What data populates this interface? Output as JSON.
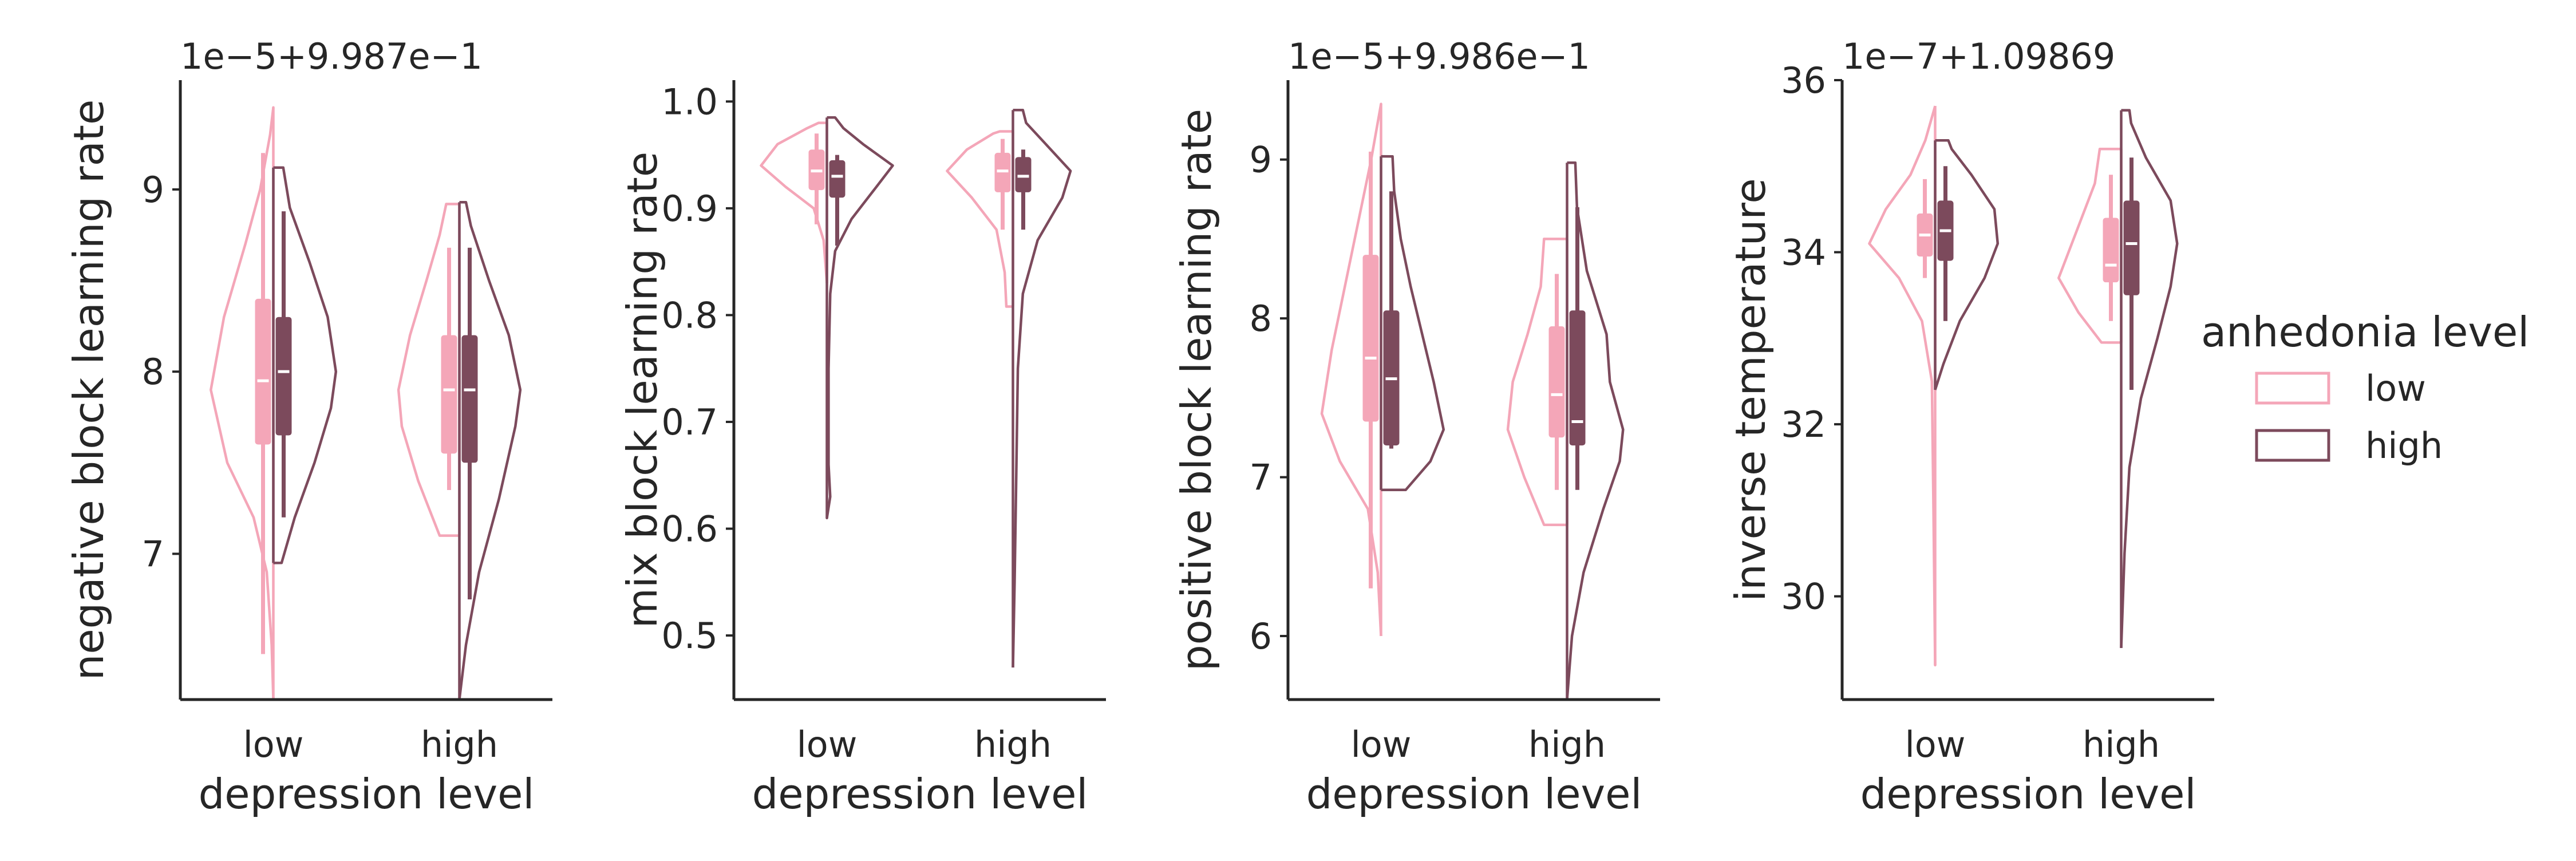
{
  "chart_data": [
    {
      "type": "violin",
      "ylabel": "negative block learning rate",
      "xlabel": "depression level",
      "offset_text": "1e−5+9.987e−1",
      "categories": [
        "low",
        "high"
      ],
      "ylim": [
        6.2,
        9.6
      ],
      "yticks": [
        {
          "value": 7,
          "label": "7"
        },
        {
          "value": 8,
          "label": "8"
        },
        {
          "value": 9,
          "label": "9"
        }
      ],
      "groups": [
        {
          "category": "low",
          "low": {
            "min": 6.2,
            "max": 9.45,
            "q1": 7.6,
            "median": 7.95,
            "q3": 8.4,
            "wlo": 6.45,
            "whi": 9.2,
            "profile": [
              [
                6.2,
                0.0
              ],
              [
                6.5,
                0.01
              ],
              [
                6.9,
                0.04
              ],
              [
                7.2,
                0.12
              ],
              [
                7.5,
                0.28
              ],
              [
                7.9,
                0.38
              ],
              [
                8.3,
                0.3
              ],
              [
                8.7,
                0.17
              ],
              [
                9.0,
                0.08
              ],
              [
                9.3,
                0.02
              ],
              [
                9.45,
                0.0
              ]
            ]
          },
          "high": {
            "min": 6.95,
            "max": 9.12,
            "q1": 7.65,
            "median": 8.0,
            "q3": 8.3,
            "wlo": 7.2,
            "whi": 8.88,
            "profile": [
              [
                6.95,
                0.05
              ],
              [
                7.2,
                0.13
              ],
              [
                7.5,
                0.25
              ],
              [
                7.8,
                0.35
              ],
              [
                8.0,
                0.38
              ],
              [
                8.3,
                0.33
              ],
              [
                8.6,
                0.22
              ],
              [
                8.9,
                0.1
              ],
              [
                9.12,
                0.06
              ]
            ]
          }
        },
        {
          "category": "high",
          "low": {
            "min": 7.1,
            "max": 8.92,
            "q1": 7.55,
            "median": 7.9,
            "q3": 8.2,
            "wlo": 7.35,
            "whi": 8.68,
            "profile": [
              [
                7.1,
                0.12
              ],
              [
                7.4,
                0.25
              ],
              [
                7.7,
                0.35
              ],
              [
                7.9,
                0.37
              ],
              [
                8.2,
                0.3
              ],
              [
                8.5,
                0.2
              ],
              [
                8.75,
                0.12
              ],
              [
                8.92,
                0.08
              ]
            ]
          },
          "high": {
            "min": 6.2,
            "max": 8.93,
            "q1": 7.5,
            "median": 7.9,
            "q3": 8.2,
            "wlo": 6.75,
            "whi": 8.68,
            "profile": [
              [
                6.2,
                0.0
              ],
              [
                6.5,
                0.04
              ],
              [
                6.9,
                0.12
              ],
              [
                7.3,
                0.24
              ],
              [
                7.7,
                0.34
              ],
              [
                7.9,
                0.37
              ],
              [
                8.2,
                0.3
              ],
              [
                8.5,
                0.18
              ],
              [
                8.8,
                0.07
              ],
              [
                8.93,
                0.04
              ]
            ]
          }
        }
      ]
    },
    {
      "type": "violin",
      "ylabel": "mix block learning rate",
      "xlabel": "depression level",
      "offset_text": "",
      "categories": [
        "low",
        "high"
      ],
      "ylim": [
        0.44,
        1.02
      ],
      "yticks": [
        {
          "value": 0.5,
          "label": "0.5"
        },
        {
          "value": 0.6,
          "label": "0.6"
        },
        {
          "value": 0.7,
          "label": "0.7"
        },
        {
          "value": 0.8,
          "label": "0.8"
        },
        {
          "value": 0.9,
          "label": "0.9"
        },
        {
          "value": 1.0,
          "label": "1.0"
        }
      ],
      "groups": [
        {
          "category": "low",
          "low": {
            "min": 0.83,
            "max": 0.98,
            "q1": 0.917,
            "median": 0.935,
            "q3": 0.955,
            "wlo": 0.885,
            "whi": 0.97,
            "profile": [
              [
                0.83,
                0.0
              ],
              [
                0.87,
                0.02
              ],
              [
                0.9,
                0.08
              ],
              [
                0.92,
                0.25
              ],
              [
                0.94,
                0.4
              ],
              [
                0.96,
                0.3
              ],
              [
                0.975,
                0.12
              ],
              [
                0.98,
                0.05
              ]
            ]
          },
          "high": {
            "min": 0.61,
            "max": 0.985,
            "q1": 0.91,
            "median": 0.93,
            "q3": 0.945,
            "wlo": 0.865,
            "whi": 0.95,
            "profile": [
              [
                0.61,
                0.0
              ],
              [
                0.63,
                0.02
              ],
              [
                0.66,
                0.01
              ],
              [
                0.75,
                0.01
              ],
              [
                0.82,
                0.02
              ],
              [
                0.86,
                0.05
              ],
              [
                0.89,
                0.15
              ],
              [
                0.92,
                0.3
              ],
              [
                0.94,
                0.4
              ],
              [
                0.96,
                0.22
              ],
              [
                0.975,
                0.1
              ],
              [
                0.985,
                0.05
              ]
            ]
          }
        },
        {
          "category": "high",
          "low": {
            "min": 0.808,
            "max": 0.972,
            "q1": 0.915,
            "median": 0.935,
            "q3": 0.952,
            "wlo": 0.88,
            "whi": 0.965,
            "profile": [
              [
                0.808,
                0.04
              ],
              [
                0.84,
                0.05
              ],
              [
                0.88,
                0.1
              ],
              [
                0.91,
                0.25
              ],
              [
                0.935,
                0.4
              ],
              [
                0.955,
                0.28
              ],
              [
                0.97,
                0.12
              ],
              [
                0.972,
                0.08
              ]
            ]
          },
          "high": {
            "min": 0.47,
            "max": 0.992,
            "q1": 0.915,
            "median": 0.93,
            "q3": 0.948,
            "wlo": 0.88,
            "whi": 0.955,
            "profile": [
              [
                0.47,
                0.0
              ],
              [
                0.55,
                0.01
              ],
              [
                0.65,
                0.02
              ],
              [
                0.75,
                0.03
              ],
              [
                0.82,
                0.06
              ],
              [
                0.87,
                0.15
              ],
              [
                0.91,
                0.3
              ],
              [
                0.935,
                0.35
              ],
              [
                0.96,
                0.2
              ],
              [
                0.98,
                0.08
              ],
              [
                0.992,
                0.06
              ]
            ]
          }
        }
      ]
    },
    {
      "type": "violin",
      "ylabel": "positive block learning rate",
      "xlabel": "depression level",
      "offset_text": "1e−5+9.986e−1",
      "categories": [
        "low",
        "high"
      ],
      "ylim": [
        5.6,
        9.5
      ],
      "yticks": [
        {
          "value": 6,
          "label": "6"
        },
        {
          "value": 7,
          "label": "7"
        },
        {
          "value": 8,
          "label": "8"
        },
        {
          "value": 9,
          "label": "9"
        }
      ],
      "groups": [
        {
          "category": "low",
          "low": {
            "min": 6.0,
            "max": 9.35,
            "q1": 7.35,
            "median": 7.75,
            "q3": 8.4,
            "wlo": 6.3,
            "whi": 9.05,
            "profile": [
              [
                6.0,
                0.0
              ],
              [
                6.4,
                0.02
              ],
              [
                6.8,
                0.08
              ],
              [
                7.1,
                0.25
              ],
              [
                7.4,
                0.36
              ],
              [
                7.8,
                0.3
              ],
              [
                8.2,
                0.22
              ],
              [
                8.6,
                0.14
              ],
              [
                9.0,
                0.06
              ],
              [
                9.35,
                0.0
              ]
            ]
          },
          "high": {
            "min": 6.92,
            "max": 9.02,
            "q1": 7.2,
            "median": 7.62,
            "q3": 8.05,
            "wlo": 7.18,
            "whi": 8.8,
            "profile": [
              [
                6.92,
                0.15
              ],
              [
                7.1,
                0.3
              ],
              [
                7.3,
                0.38
              ],
              [
                7.6,
                0.32
              ],
              [
                7.9,
                0.25
              ],
              [
                8.2,
                0.18
              ],
              [
                8.5,
                0.12
              ],
              [
                8.8,
                0.08
              ],
              [
                9.02,
                0.07
              ]
            ]
          }
        },
        {
          "category": "high",
          "low": {
            "min": 6.7,
            "max": 8.5,
            "q1": 7.25,
            "median": 7.52,
            "q3": 7.95,
            "wlo": 6.92,
            "whi": 8.28,
            "profile": [
              [
                6.7,
                0.14
              ],
              [
                7.0,
                0.26
              ],
              [
                7.3,
                0.36
              ],
              [
                7.6,
                0.33
              ],
              [
                7.9,
                0.24
              ],
              [
                8.2,
                0.16
              ],
              [
                8.5,
                0.14
              ]
            ]
          },
          "high": {
            "min": 5.6,
            "max": 8.98,
            "q1": 7.2,
            "median": 7.35,
            "q3": 8.05,
            "wlo": 6.92,
            "whi": 8.7,
            "profile": [
              [
                5.6,
                0.0
              ],
              [
                6.0,
                0.03
              ],
              [
                6.4,
                0.1
              ],
              [
                6.8,
                0.22
              ],
              [
                7.1,
                0.32
              ],
              [
                7.3,
                0.34
              ],
              [
                7.6,
                0.26
              ],
              [
                7.9,
                0.24
              ],
              [
                8.3,
                0.12
              ],
              [
                8.7,
                0.06
              ],
              [
                8.98,
                0.05
              ]
            ]
          }
        }
      ]
    },
    {
      "type": "violin",
      "ylabel": "inverse temperature",
      "xlabel": "depression level",
      "offset_text": "1e−7+1.09869",
      "categories": [
        "low",
        "high"
      ],
      "ylim": [
        28.8,
        36.0
      ],
      "yticks": [
        {
          "value": 30,
          "label": "30"
        },
        {
          "value": 32,
          "label": "32"
        },
        {
          "value": 34,
          "label": "34"
        },
        {
          "value": 36,
          "label": "36"
        }
      ],
      "groups": [
        {
          "category": "low",
          "low": {
            "min": 29.2,
            "max": 35.7,
            "q1": 33.95,
            "median": 34.2,
            "q3": 34.45,
            "wlo": 33.7,
            "whi": 34.85,
            "profile": [
              [
                29.2,
                0.0
              ],
              [
                31.0,
                0.01
              ],
              [
                32.5,
                0.02
              ],
              [
                33.2,
                0.08
              ],
              [
                33.7,
                0.22
              ],
              [
                34.1,
                0.4
              ],
              [
                34.5,
                0.3
              ],
              [
                34.9,
                0.15
              ],
              [
                35.3,
                0.06
              ],
              [
                35.7,
                0.0
              ]
            ]
          },
          "high": {
            "min": 32.4,
            "max": 35.3,
            "q1": 33.9,
            "median": 34.25,
            "q3": 34.6,
            "wlo": 33.2,
            "whi": 35.0,
            "profile": [
              [
                32.4,
                0.0
              ],
              [
                32.7,
                0.05
              ],
              [
                33.2,
                0.15
              ],
              [
                33.7,
                0.3
              ],
              [
                34.1,
                0.38
              ],
              [
                34.5,
                0.36
              ],
              [
                34.9,
                0.22
              ],
              [
                35.2,
                0.1
              ],
              [
                35.3,
                0.08
              ]
            ]
          }
        },
        {
          "category": "high",
          "low": {
            "min": 32.95,
            "max": 35.2,
            "q1": 33.65,
            "median": 33.85,
            "q3": 34.4,
            "wlo": 33.2,
            "whi": 34.9,
            "profile": [
              [
                32.95,
                0.12
              ],
              [
                33.3,
                0.26
              ],
              [
                33.7,
                0.38
              ],
              [
                34.0,
                0.32
              ],
              [
                34.4,
                0.24
              ],
              [
                34.8,
                0.16
              ],
              [
                35.2,
                0.13
              ]
            ]
          },
          "high": {
            "min": 29.4,
            "max": 35.65,
            "q1": 33.5,
            "median": 34.1,
            "q3": 34.6,
            "wlo": 32.4,
            "whi": 35.1,
            "profile": [
              [
                29.4,
                0.0
              ],
              [
                30.5,
                0.02
              ],
              [
                31.5,
                0.05
              ],
              [
                32.3,
                0.12
              ],
              [
                33.0,
                0.22
              ],
              [
                33.6,
                0.3
              ],
              [
                34.1,
                0.34
              ],
              [
                34.6,
                0.3
              ],
              [
                35.1,
                0.15
              ],
              [
                35.5,
                0.06
              ],
              [
                35.65,
                0.05
              ]
            ]
          }
        }
      ]
    }
  ],
  "legend": {
    "title": "anhedonia level",
    "items": [
      {
        "label": "low",
        "color": "#f4a6b8"
      },
      {
        "label": "high",
        "color": "#7c4a5c"
      }
    ]
  },
  "colors": {
    "low": "#f4a6b8",
    "high": "#7c4a5c",
    "axis": "#262626"
  }
}
